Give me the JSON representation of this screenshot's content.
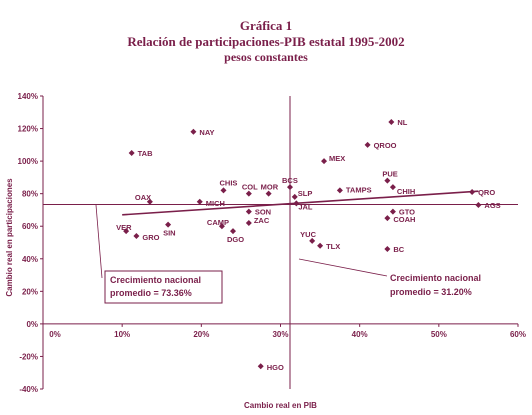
{
  "titles": {
    "line1": "Gráfica 1",
    "line2": "Relación de participaciones-PIB estatal 1995-2002",
    "line3": "pesos constantes"
  },
  "colors": {
    "accent": "#7a1f4a"
  },
  "chart_data": {
    "type": "scatter",
    "xlabel": "Cambio real en PIB",
    "ylabel": "Cambio real en participaciones",
    "xlim": [
      0,
      60
    ],
    "ylim": [
      -40,
      140
    ],
    "x_ticks": [
      {
        "value": 0,
        "label": "0%"
      },
      {
        "value": 10,
        "label": "10%"
      },
      {
        "value": 20,
        "label": "20%"
      },
      {
        "value": 30,
        "label": "30%"
      },
      {
        "value": 40,
        "label": "40%"
      },
      {
        "value": 50,
        "label": "50%"
      },
      {
        "value": 60,
        "label": "60%"
      }
    ],
    "y_ticks": [
      {
        "value": 140,
        "label": "140%"
      },
      {
        "value": 120,
        "label": "120%"
      },
      {
        "value": 100,
        "label": "100%"
      },
      {
        "value": 80,
        "label": "80%"
      },
      {
        "value": 60,
        "label": "60%"
      },
      {
        "value": 40,
        "label": "40%"
      },
      {
        "value": 20,
        "label": "20%"
      },
      {
        "value": 0,
        "label": "0%"
      },
      {
        "value": -20,
        "label": "-20%"
      },
      {
        "value": -40,
        "label": "-40%"
      }
    ],
    "grid": false,
    "points": [
      {
        "label": "NL",
        "x": 44.0,
        "y": 124
      },
      {
        "label": "NAY",
        "x": 19.0,
        "y": 118
      },
      {
        "label": "QROO",
        "x": 41.0,
        "y": 110
      },
      {
        "label": "TAB",
        "x": 11.2,
        "y": 105
      },
      {
        "label": "MEX",
        "x": 35.5,
        "y": 100
      },
      {
        "label": "PUE",
        "x": 43.5,
        "y": 88
      },
      {
        "label": "CHIH",
        "x": 44.2,
        "y": 84
      },
      {
        "label": "BCS",
        "x": 31.2,
        "y": 84
      },
      {
        "label": "TAMPS",
        "x": 37.5,
        "y": 82
      },
      {
        "label": "CHIS",
        "x": 22.8,
        "y": 82
      },
      {
        "label": "COL",
        "x": 26.0,
        "y": 80
      },
      {
        "label": "MOR",
        "x": 28.5,
        "y": 80
      },
      {
        "label": "QRO",
        "x": 54.2,
        "y": 81
      },
      {
        "label": "SLP",
        "x": 31.8,
        "y": 78
      },
      {
        "label": "OAX",
        "x": 13.5,
        "y": 75
      },
      {
        "label": "MICH",
        "x": 19.8,
        "y": 75
      },
      {
        "label": "JAL",
        "x": 32.0,
        "y": 74
      },
      {
        "label": "AGS",
        "x": 55.0,
        "y": 73
      },
      {
        "label": "SON",
        "x": 26.0,
        "y": 69
      },
      {
        "label": "GTO",
        "x": 44.2,
        "y": 69
      },
      {
        "label": "COAH",
        "x": 43.5,
        "y": 65
      },
      {
        "label": "ZAC",
        "x": 26.0,
        "y": 62
      },
      {
        "label": "CAMP",
        "x": 22.6,
        "y": 60
      },
      {
        "label": "SIN",
        "x": 15.8,
        "y": 61
      },
      {
        "label": "VER",
        "x": 10.5,
        "y": 57
      },
      {
        "label": "GRO",
        "x": 11.8,
        "y": 54
      },
      {
        "label": "DGO",
        "x": 24.0,
        "y": 57
      },
      {
        "label": "YUC",
        "x": 34.0,
        "y": 51
      },
      {
        "label": "TLX",
        "x": 35.0,
        "y": 48
      },
      {
        "label": "BC",
        "x": 43.5,
        "y": 46
      },
      {
        "label": "HGO",
        "x": 27.5,
        "y": -26
      }
    ],
    "trendline": {
      "x": [
        10,
        55
      ],
      "y": [
        67,
        81.5
      ]
    },
    "reference_lines": {
      "horizontal_y": 73.36,
      "vertical_x": 31.2
    },
    "annotations": [
      {
        "id": "nat-participaciones",
        "line1": "Crecimiento nacional",
        "line2": "promedio = 73.36%"
      },
      {
        "id": "nat-pib",
        "line1": "Crecimiento nacional",
        "line2": "promedio = 31.20%"
      }
    ]
  }
}
